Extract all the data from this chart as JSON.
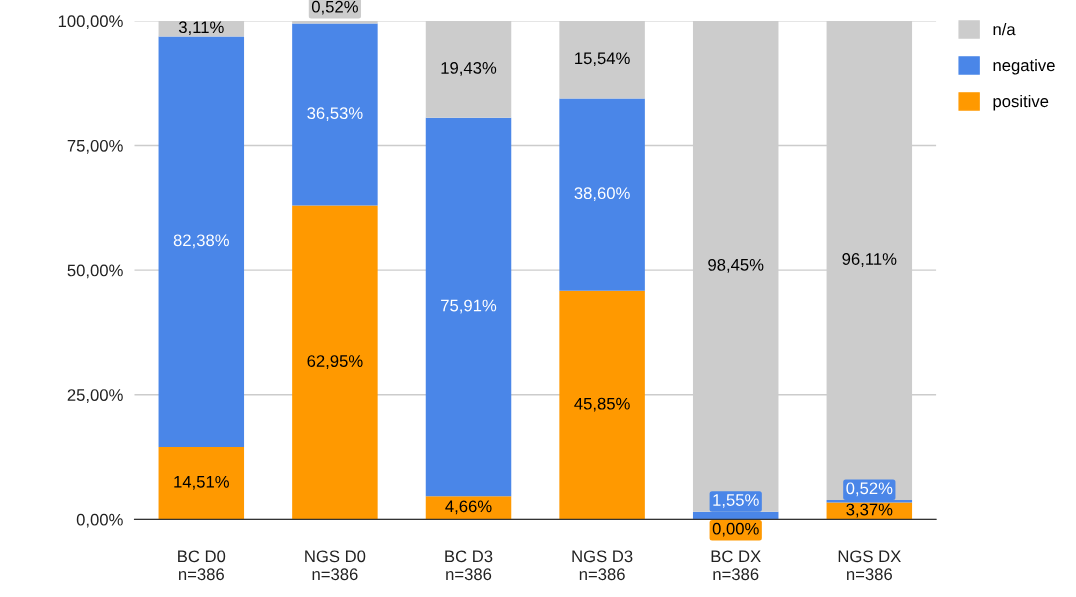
{
  "chart_data": {
    "type": "bar",
    "stacked": true,
    "categories": [
      "BC D0\nn=386",
      "NGS D0\nn=386",
      "BC D3\nn=386",
      "NGS D3\nn=386",
      "BC DX\nn=386",
      "NGS DX\nn=386"
    ],
    "series": [
      {
        "name": "positive",
        "color": "#ff9900",
        "values": [
          14.51,
          62.95,
          4.66,
          45.85,
          0.0,
          3.37
        ],
        "value_labels": [
          "14,51%",
          "62,95%",
          "4,66%",
          "45,85%",
          "0,00%",
          "3,37%"
        ]
      },
      {
        "name": "negative",
        "color": "#4a86e8",
        "values": [
          82.38,
          36.53,
          75.91,
          38.6,
          1.55,
          0.52
        ],
        "value_labels": [
          "82,38%",
          "36,53%",
          "75,91%",
          "38,60%",
          "1,55%",
          "0,52%"
        ]
      },
      {
        "name": "n/a",
        "color": "#cccccc",
        "values": [
          3.11,
          0.52,
          19.43,
          15.54,
          98.45,
          96.11
        ],
        "value_labels": [
          "3,11%",
          "0,52%",
          "19,43%",
          "15,54%",
          "98,45%",
          "96,11%"
        ]
      }
    ],
    "ylim": [
      0,
      100
    ],
    "yticks": [
      {
        "value": 0,
        "label": "0,00%"
      },
      {
        "value": 25,
        "label": "25,00%"
      },
      {
        "value": 50,
        "label": "50,00%"
      },
      {
        "value": 75,
        "label": "75,00%"
      },
      {
        "value": 100,
        "label": "100,00%"
      }
    ],
    "grid": "y",
    "legend": "top right"
  }
}
